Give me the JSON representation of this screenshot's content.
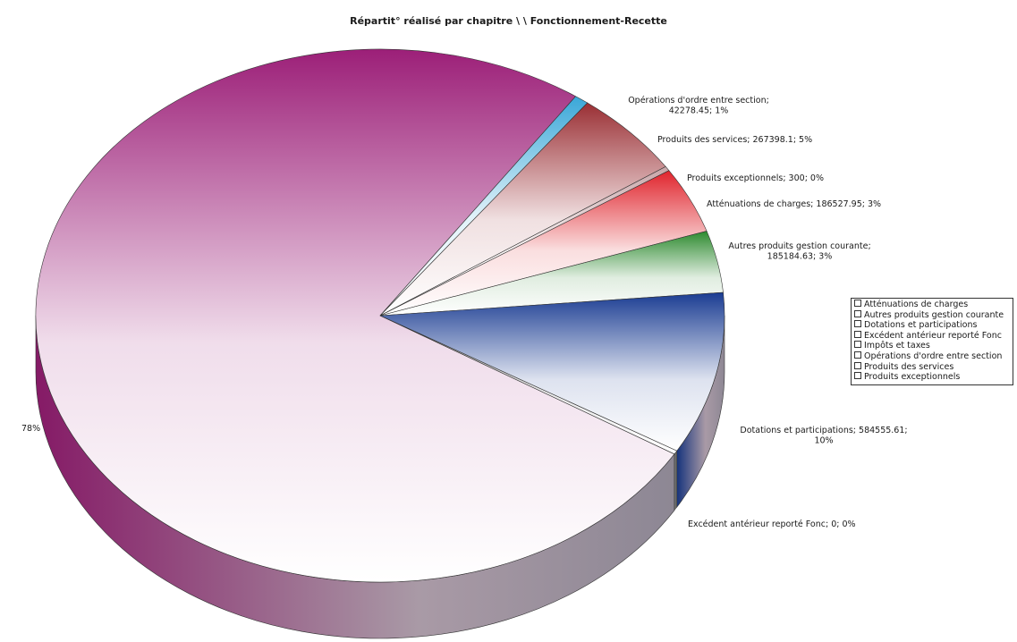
{
  "chart_data": {
    "type": "pie",
    "title": "Répartit° réalisé par chapitre \\ \\ Fonctionnement-Recette",
    "slices": [
      {
        "name": "Impôts et taxes",
        "value": null,
        "percent": 78,
        "label": "78%",
        "color": "#9c1f78"
      },
      {
        "name": "Opérations d'ordre entre section",
        "value": 42278.45,
        "percent": 1,
        "label_lines": [
          "Opérations d'ordre entre section;",
          "42278.45; 1%"
        ],
        "color": "#3aa7d8"
      },
      {
        "name": "Produits des services",
        "value": 267398.1,
        "percent": 5,
        "label_lines": [
          "Produits des services; 267398.1; 5%"
        ],
        "color": "#9a2f34"
      },
      {
        "name": "Produits exceptionnels",
        "value": 300,
        "percent": 0,
        "label_lines": [
          "Produits exceptionnels; 300; 0%"
        ],
        "color": "#c8a5a8"
      },
      {
        "name": "Atténuations de charges",
        "value": 186527.95,
        "percent": 3,
        "label_lines": [
          "Atténuations de charges; 186527.95; 3%"
        ],
        "color": "#e0242c"
      },
      {
        "name": "Autres produits gestion courante",
        "value": 185184.63,
        "percent": 3,
        "label_lines": [
          "Autres produits gestion courante;",
          "185184.63; 3%"
        ],
        "color": "#2d8a2f"
      },
      {
        "name": "Dotations et participations",
        "value": 584555.61,
        "percent": 10,
        "label_lines": [
          "Dotations et participations; 584555.61;",
          "10%"
        ],
        "color": "#1a3c92"
      },
      {
        "name": "Excédent antérieur reporté Fonc",
        "value": 0,
        "percent": 0,
        "label_lines": [
          "Excédent antérieur reporté Fonc; 0; 0%"
        ],
        "color": "#6b6b6b"
      }
    ],
    "legend": {
      "placement": "right",
      "items": [
        "Atténuations de charges",
        "Autres produits gestion courante",
        "Dotations et participations",
        "Excédent antérieur reporté Fonc",
        "Impôts et taxes",
        "Opérations d'ordre entre section",
        "Produits des services",
        "Produits exceptionnels"
      ]
    }
  }
}
